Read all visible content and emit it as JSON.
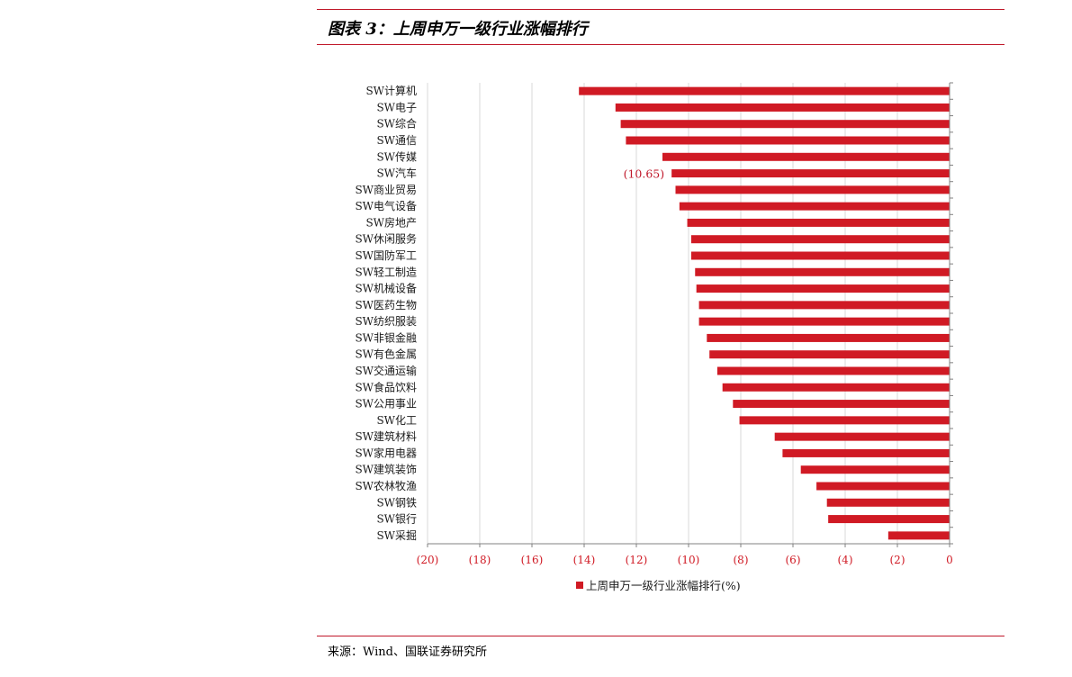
{
  "header": {
    "title": "图表 3：上周申万一级行业涨幅排行"
  },
  "footer": {
    "source": "来源：Wind、国联证券研究所"
  },
  "colors": {
    "bar": "#d01a24",
    "rule": "#c0182a",
    "tick_text": "#d01a24",
    "grid": "#d9d9d9"
  },
  "chart_data": {
    "type": "bar",
    "orientation": "horizontal",
    "title": "",
    "xlabel": "",
    "ylabel": "",
    "xlim": [
      -20,
      0
    ],
    "x_ticks": [
      -20,
      -18,
      -16,
      -14,
      -12,
      -10,
      -8,
      -6,
      -4,
      -2,
      0
    ],
    "x_tick_labels": [
      "(20)",
      "(18)",
      "(16)",
      "(14)",
      "(12)",
      "(10)",
      "(8)",
      "(6)",
      "(4)",
      "(2)",
      "0"
    ],
    "grid": true,
    "legend_position": "bottom",
    "categories": [
      "SW计算机",
      "SW电子",
      "SW综合",
      "SW通信",
      "SW传媒",
      "SW汽车",
      "SW商业贸易",
      "SW电气设备",
      "SW房地产",
      "SW休闲服务",
      "SW国防军工",
      "SW轻工制造",
      "SW机械设备",
      "SW医药生物",
      "SW纺织服装",
      "SW非银金融",
      "SW有色金属",
      "SW交通运输",
      "SW食品饮料",
      "SW公用事业",
      "SW化工",
      "SW建筑材料",
      "SW家用电器",
      "SW建筑装饰",
      "SW农林牧渔",
      "SW钢铁",
      "SW银行",
      "SW采掘"
    ],
    "series": [
      {
        "name": "上周申万一级行业涨幅排行(%)",
        "values": [
          -14.2,
          -12.8,
          -12.6,
          -12.4,
          -11.0,
          -10.65,
          -10.5,
          -10.35,
          -10.05,
          -9.9,
          -9.9,
          -9.75,
          -9.7,
          -9.6,
          -9.6,
          -9.3,
          -9.2,
          -8.9,
          -8.7,
          -8.3,
          -8.05,
          -6.7,
          -6.4,
          -5.7,
          -5.1,
          -4.7,
          -4.65,
          -2.35
        ]
      }
    ],
    "data_labels": [
      {
        "category": "SW汽车",
        "text": "(10.65)"
      }
    ]
  }
}
